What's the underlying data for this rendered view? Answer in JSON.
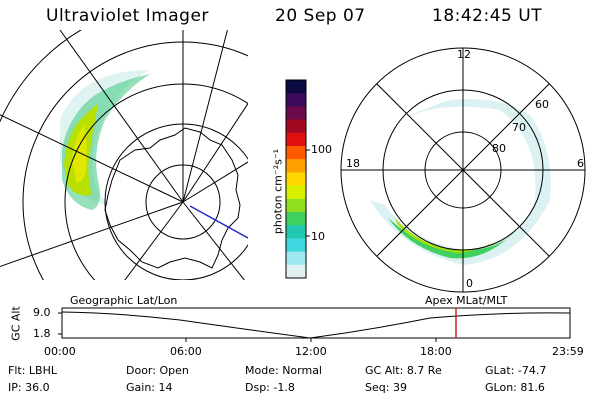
{
  "header": {
    "instrument": "Ultraviolet Imager",
    "date": "20 Sep 07",
    "time": "18:42:45 UT"
  },
  "colorbar": {
    "unit_label": "photon cm⁻²s⁻¹",
    "ticks": [
      "100",
      "10"
    ],
    "colors": [
      "#0a0a40",
      "#3b0a5a",
      "#6a0a4a",
      "#a00a20",
      "#e01010",
      "#ff5a00",
      "#ffa000",
      "#ffd800",
      "#d8f000",
      "#90e020",
      "#40d060",
      "#20c8b0",
      "#40d8e0",
      "#a0e8f0",
      "#e0f0f0"
    ]
  },
  "left_map": {
    "label": "Geographic Lat/Lon"
  },
  "right_map": {
    "label": "Apex MLat/MLT",
    "lat_labels": [
      "60",
      "70",
      "80"
    ],
    "mlt_labels": [
      "12",
      "18",
      "6",
      "0"
    ]
  },
  "altitude_plot": {
    "ylabel": "GC Alt",
    "yticks": [
      "9.0",
      "1.8"
    ],
    "xticks": [
      "00:00",
      "06:00",
      "12:00",
      "18:00",
      "23:59"
    ],
    "marker_color": "#d02020"
  },
  "status": {
    "row1": [
      {
        "key": "Flt:",
        "value": "LBHL"
      },
      {
        "key": "Door:",
        "value": "Open"
      },
      {
        "key": "Mode:",
        "value": "Normal"
      },
      {
        "key": "GC Alt:",
        "value": "8.7 Re"
      },
      {
        "key": "GLat:",
        "value": "-74.7"
      }
    ],
    "row2": [
      {
        "key": "IP:",
        "value": "36.0"
      },
      {
        "key": "Gain:",
        "value": "14"
      },
      {
        "key": "Dsp:",
        "value": "-1.8"
      },
      {
        "key": "Seq:",
        "value": "39"
      },
      {
        "key": "GLon:",
        "value": "81.6"
      }
    ]
  }
}
